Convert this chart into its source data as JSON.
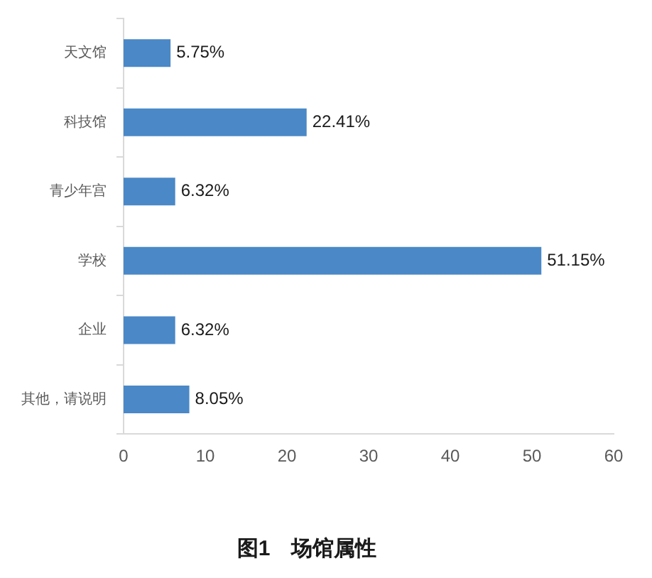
{
  "chart_data": {
    "type": "bar",
    "orientation": "horizontal",
    "title": "图1　场馆属性",
    "categories": [
      "天文馆",
      "科技馆",
      "青少年宫",
      "学校",
      "企业",
      "其他，请说明"
    ],
    "values": [
      5.75,
      22.41,
      6.32,
      51.15,
      6.32,
      8.05
    ],
    "value_labels": [
      "5.75%",
      "22.41%",
      "6.32%",
      "51.15%",
      "6.32%",
      "8.05%"
    ],
    "color": "#4a88c7",
    "xlim": [
      0,
      60
    ],
    "xticks": [
      0,
      10,
      20,
      30,
      40,
      50,
      60
    ]
  }
}
